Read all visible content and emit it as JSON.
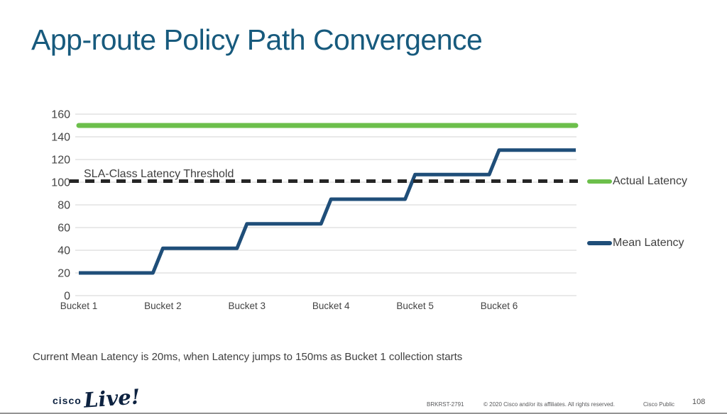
{
  "slide": {
    "title": "App-route Policy Path Convergence",
    "caption": "Current Mean Latency is 20ms, when Latency jumps to 150ms as Bucket 1 collection starts"
  },
  "chart_data": {
    "type": "line",
    "title": "",
    "xlabel": "",
    "ylabel": "",
    "categories": [
      "Bucket 1",
      "Bucket 2",
      "Bucket 3",
      "Bucket 4",
      "Bucket 5",
      "Bucket 6"
    ],
    "series": [
      {
        "name": "Actual Latency",
        "style": "solid",
        "color": "#6CBF4B",
        "values": [
          150,
          150,
          150,
          150,
          150,
          150
        ]
      },
      {
        "name": "Mean Latency",
        "style": "step",
        "color": "#1F4E79",
        "values": [
          20,
          41.67,
          63.33,
          85,
          106.67,
          128.33
        ]
      }
    ],
    "threshold": {
      "label": "SLA-Class Latency Threshold",
      "value": 100,
      "color": "#262626",
      "style": "dashed"
    },
    "yticks": [
      0,
      20,
      40,
      60,
      80,
      100,
      120,
      140,
      160
    ],
    "ylim": [
      0,
      160
    ],
    "grid": true,
    "legend_position": "right"
  },
  "footer": {
    "logo_cisco": "cisco",
    "logo_live": "Live!",
    "session_id": "BRKRST-2791",
    "copyright": "© 2020  Cisco and/or its affiliates. All rights reserved.",
    "classification": "Cisco Public",
    "page_number": "108"
  },
  "colors": {
    "title": "#175A7D",
    "actual_green": "#6CBF4B",
    "mean_navy": "#1F4E79",
    "threshold_black": "#262626",
    "grid": "#E2E2E2",
    "axis_text": "#444444",
    "caption_text": "#404040",
    "footer_text": "#58595B",
    "logo_navy": "#0D2240"
  }
}
